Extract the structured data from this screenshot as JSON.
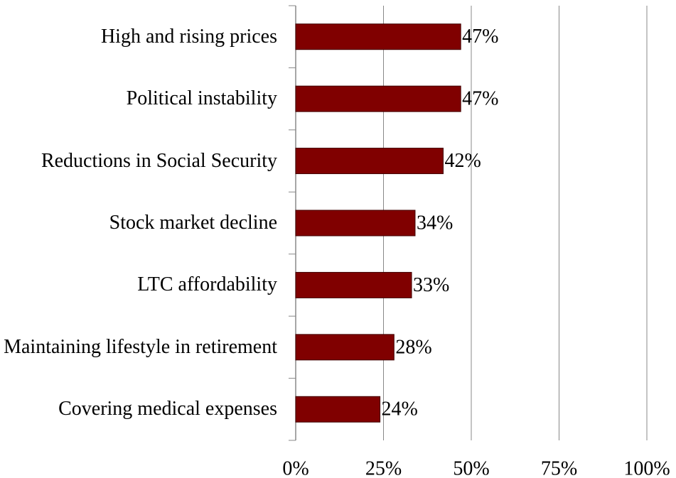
{
  "chart_data": {
    "type": "hbar",
    "categories": [
      "High and rising prices",
      "Political instability",
      "Reductions in Social Security",
      "Stock market decline",
      "LTC affordability",
      "Maintaining lifestyle in retirement",
      "Covering medical expenses"
    ],
    "values": [
      47,
      47,
      42,
      34,
      33,
      28,
      24
    ],
    "value_labels": [
      "47%",
      "47%",
      "42%",
      "34%",
      "33%",
      "28%",
      "24%"
    ],
    "color": "#800000",
    "xlim": [
      0,
      100
    ],
    "xticks": [
      {
        "value": 0,
        "label": "0%"
      },
      {
        "value": 25,
        "label": "25%"
      },
      {
        "value": 50,
        "label": "50%"
      },
      {
        "value": 75,
        "label": "75%"
      },
      {
        "value": 100,
        "label": "100%"
      }
    ],
    "grid": true
  }
}
